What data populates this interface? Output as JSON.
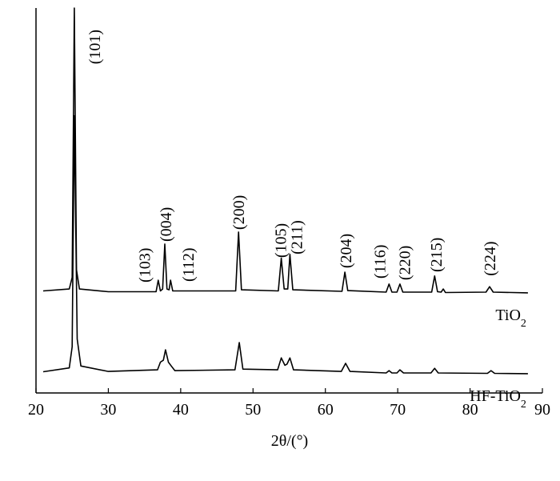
{
  "chart_data": {
    "type": "line",
    "xlabel": "2θ/(°)",
    "xlim": [
      20,
      90
    ],
    "xticks": [
      20,
      30,
      40,
      50,
      60,
      70,
      80,
      90
    ],
    "ylim": [
      0,
      100
    ],
    "series": [
      {
        "name": "TiO2",
        "color": "#000000",
        "x": [
          21,
          24.6,
          25.0,
          25.3,
          25.6,
          26.0,
          30,
          36.6,
          36.9,
          37.2,
          37.5,
          37.8,
          38.1,
          38.4,
          38.6,
          38.9,
          47.6,
          48.0,
          48.4,
          53.5,
          53.9,
          54.3,
          54.8,
          55.1,
          55.5,
          62.3,
          62.7,
          63.1,
          68.4,
          68.8,
          69.2,
          69.9,
          70.3,
          70.7,
          74.7,
          75.1,
          75.5,
          76.0,
          76.3,
          76.6,
          82.2,
          82.7,
          83.2,
          88
        ],
        "values": [
          26.5,
          27,
          30,
          100,
          32,
          27,
          26.3,
          26.3,
          29.3,
          26.5,
          27,
          38.7,
          27,
          26.8,
          29.3,
          26.5,
          26.5,
          41.8,
          26.8,
          26.5,
          35,
          27,
          27,
          36,
          26.8,
          26.4,
          31.4,
          26.6,
          26.2,
          28.3,
          26.2,
          26.2,
          28.3,
          26.2,
          26.2,
          30.4,
          26.3,
          26.2,
          27,
          26.1,
          26.2,
          27.6,
          26.2,
          26
        ]
      },
      {
        "name": "HF-TiO2",
        "color": "#000000",
        "x": [
          21,
          24.6,
          25.0,
          25.3,
          25.7,
          26.2,
          30,
          36.8,
          37.2,
          37.6,
          37.9,
          38.3,
          38.7,
          39.2,
          47.5,
          48.1,
          48.6,
          53.4,
          53.9,
          54.4,
          54.7,
          55.1,
          55.6,
          62.2,
          62.8,
          63.4,
          68.4,
          68.8,
          69.2,
          69.9,
          70.3,
          70.8,
          74.6,
          75.1,
          75.6,
          82.4,
          82.9,
          83.4,
          88
        ],
        "values": [
          5.5,
          6.5,
          12,
          72,
          14,
          7,
          5.6,
          6,
          8,
          8.5,
          11.2,
          8,
          7,
          5.8,
          6,
          13.1,
          6.2,
          6,
          9.1,
          7.2,
          7.5,
          9.1,
          6,
          5.6,
          7.7,
          5.6,
          5.2,
          5.8,
          5.2,
          5.2,
          6,
          5.2,
          5.2,
          6.4,
          5.2,
          5.1,
          5.8,
          5.1,
          5.0
        ]
      }
    ],
    "annotations": [
      {
        "text": "(101)",
        "x": 28.1,
        "y": 85.4
      },
      {
        "text": "(103)",
        "x": 35.0,
        "y": 28.7
      },
      {
        "text": "(004)",
        "x": 37.9,
        "y": 39.3
      },
      {
        "text": "(112)",
        "x": 41.0,
        "y": 28.9
      },
      {
        "text": "(200)",
        "x": 48.0,
        "y": 42.4
      },
      {
        "text": "(105)",
        "x": 53.8,
        "y": 35.1
      },
      {
        "text": "(211)",
        "x": 56.0,
        "y": 36
      },
      {
        "text": "(204)",
        "x": 62.8,
        "y": 32.4
      },
      {
        "text": "(116)",
        "x": 67.5,
        "y": 29.7
      },
      {
        "text": "(220)",
        "x": 70.9,
        "y": 29.3
      },
      {
        "text": "(215)",
        "x": 75.3,
        "y": 31.4
      },
      {
        "text": "(224)",
        "x": 82.7,
        "y": 30.4
      }
    ]
  }
}
